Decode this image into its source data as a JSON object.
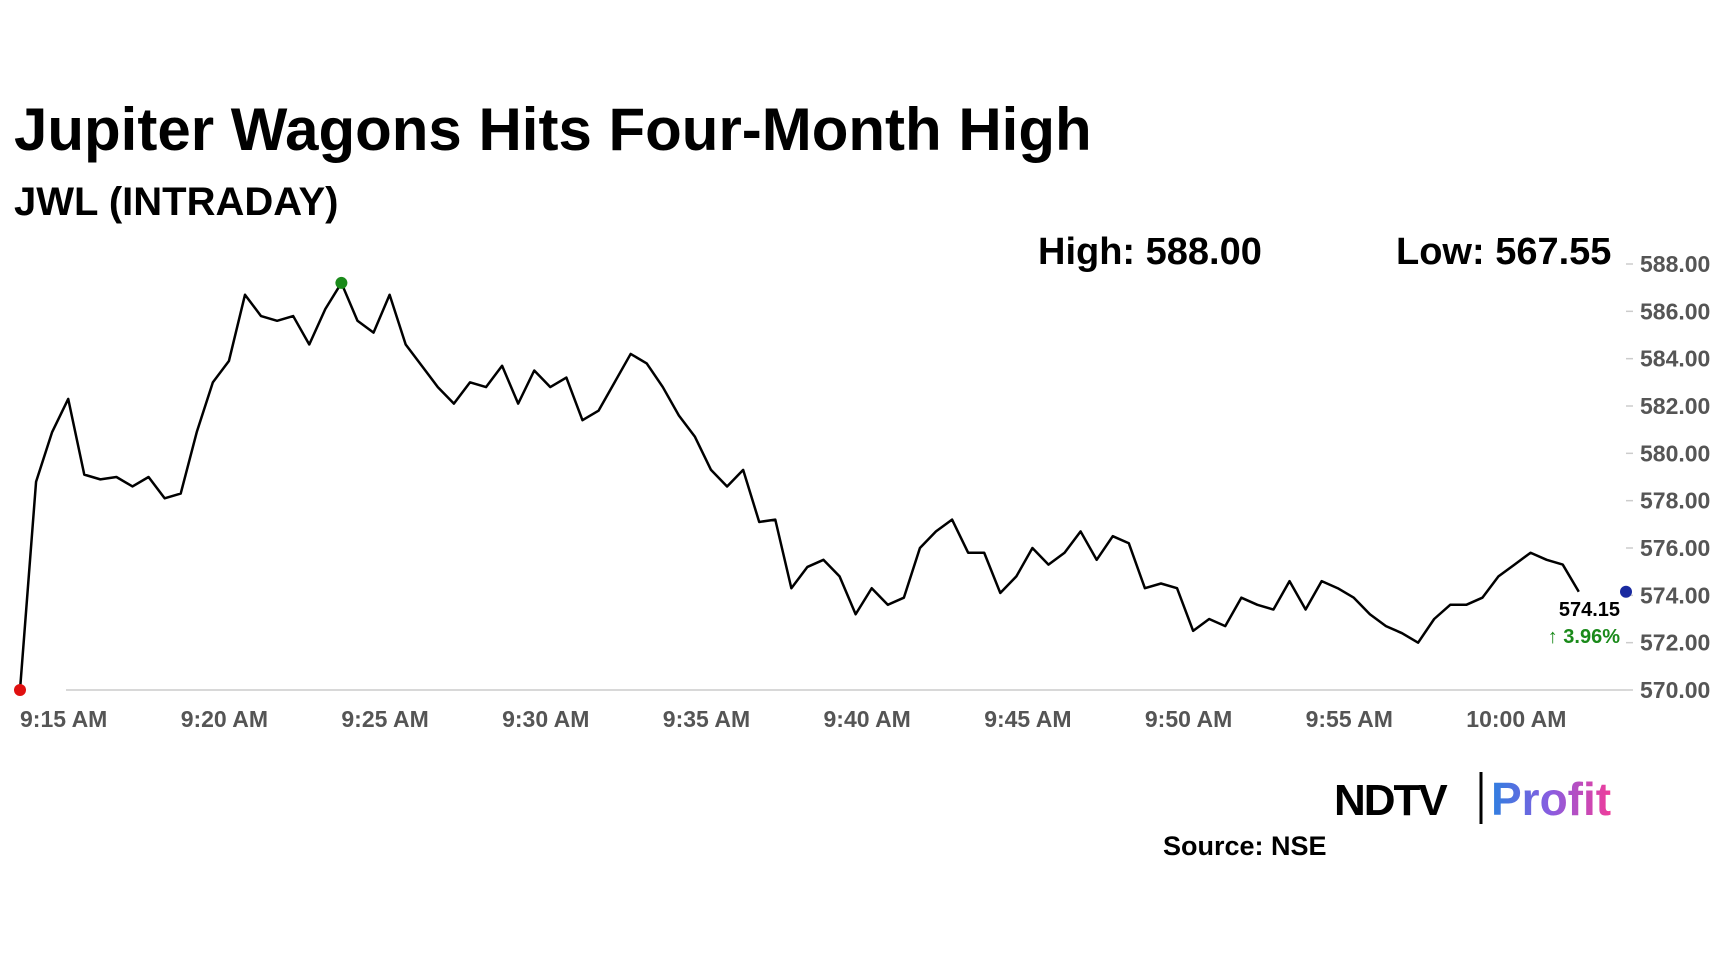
{
  "chart_data": {
    "type": "line",
    "title": "Jupiter Wagons Hits Four-Month High",
    "subtitle": "JWL (INTRADAY)",
    "annotations": [
      "High: 588.00",
      "Low: 567.55",
      "574.15",
      "↑ 3.96%"
    ],
    "source": "Source: NSE",
    "logo": [
      "NDTV",
      "Profit"
    ],
    "categories": [
      "9:15 AM",
      null,
      null,
      null,
      null,
      null,
      null,
      null,
      null,
      null,
      "9:20 AM",
      null,
      null,
      null,
      null,
      null,
      null,
      null,
      null,
      null,
      "9:25 AM",
      null,
      null,
      null,
      null,
      null,
      null,
      null,
      null,
      null,
      "9:30 AM",
      null,
      null,
      null,
      null,
      null,
      null,
      null,
      null,
      null,
      "9:35 AM",
      null,
      null,
      null,
      null,
      null,
      null,
      null,
      null,
      null,
      "9:40 AM",
      null,
      null,
      null,
      null,
      null,
      null,
      null,
      null,
      null,
      "9:45 AM",
      null,
      null,
      null,
      null,
      null,
      null,
      null,
      null,
      null,
      "9:50 AM",
      null,
      null,
      null,
      null,
      null,
      null,
      null,
      null,
      null,
      "9:55 AM",
      null,
      null,
      null,
      null,
      null,
      null,
      null,
      null,
      null,
      "10:00 AM",
      null,
      null,
      null,
      null,
      null,
      null,
      null
    ],
    "series": [
      {
        "color": "#000000",
        "values": [
          570.0,
          578.8,
          580.9,
          582.3,
          579.1,
          578.9,
          579.0,
          578.6,
          579.0,
          578.1,
          578.3,
          580.9,
          583.0,
          583.9,
          586.7,
          585.8,
          585.6,
          585.8,
          584.6,
          586.1,
          587.2,
          585.6,
          585.1,
          586.7,
          584.6,
          583.7,
          582.8,
          582.1,
          583.0,
          582.8,
          583.7,
          582.1,
          583.5,
          582.8,
          583.2,
          581.4,
          581.8,
          583.0,
          584.2,
          583.8,
          582.8,
          581.6,
          580.7,
          579.3,
          578.6,
          579.3,
          577.1,
          577.2,
          574.3,
          575.2,
          575.5,
          574.8,
          573.2,
          574.3,
          573.6,
          573.9,
          576.0,
          576.7,
          577.2,
          575.8,
          575.8,
          574.1,
          574.8,
          576.0,
          575.3,
          575.8,
          576.7,
          575.5,
          576.5,
          576.2,
          574.3,
          574.5,
          574.3,
          572.5,
          573.0,
          572.7,
          573.9,
          573.6,
          573.4,
          574.6,
          573.4,
          574.6,
          574.3,
          573.9,
          573.2,
          572.7,
          572.4,
          572.0,
          573.0,
          573.6,
          573.6,
          573.9,
          574.8,
          575.3,
          575.8,
          575.5,
          575.3,
          574.15
        ]
      }
    ],
    "markers": {
      "start": "#e01010",
      "high": "#1a8a1a",
      "last": "#1a2aa0"
    },
    "ylim": [
      570,
      588
    ],
    "yticks": [
      {
        "value": 570,
        "label": "570.00"
      },
      {
        "value": 572,
        "label": "572.00"
      },
      {
        "value": 574,
        "label": "574.00"
      },
      {
        "value": 576,
        "label": "576.00"
      },
      {
        "value": 578,
        "label": "578.00"
      },
      {
        "value": 580,
        "label": "580.00"
      },
      {
        "value": 582,
        "label": "582.00"
      },
      {
        "value": 584,
        "label": "584.00"
      },
      {
        "value": 586,
        "label": "586.00"
      },
      {
        "value": 588,
        "label": "588.00"
      }
    ],
    "grid": false
  }
}
